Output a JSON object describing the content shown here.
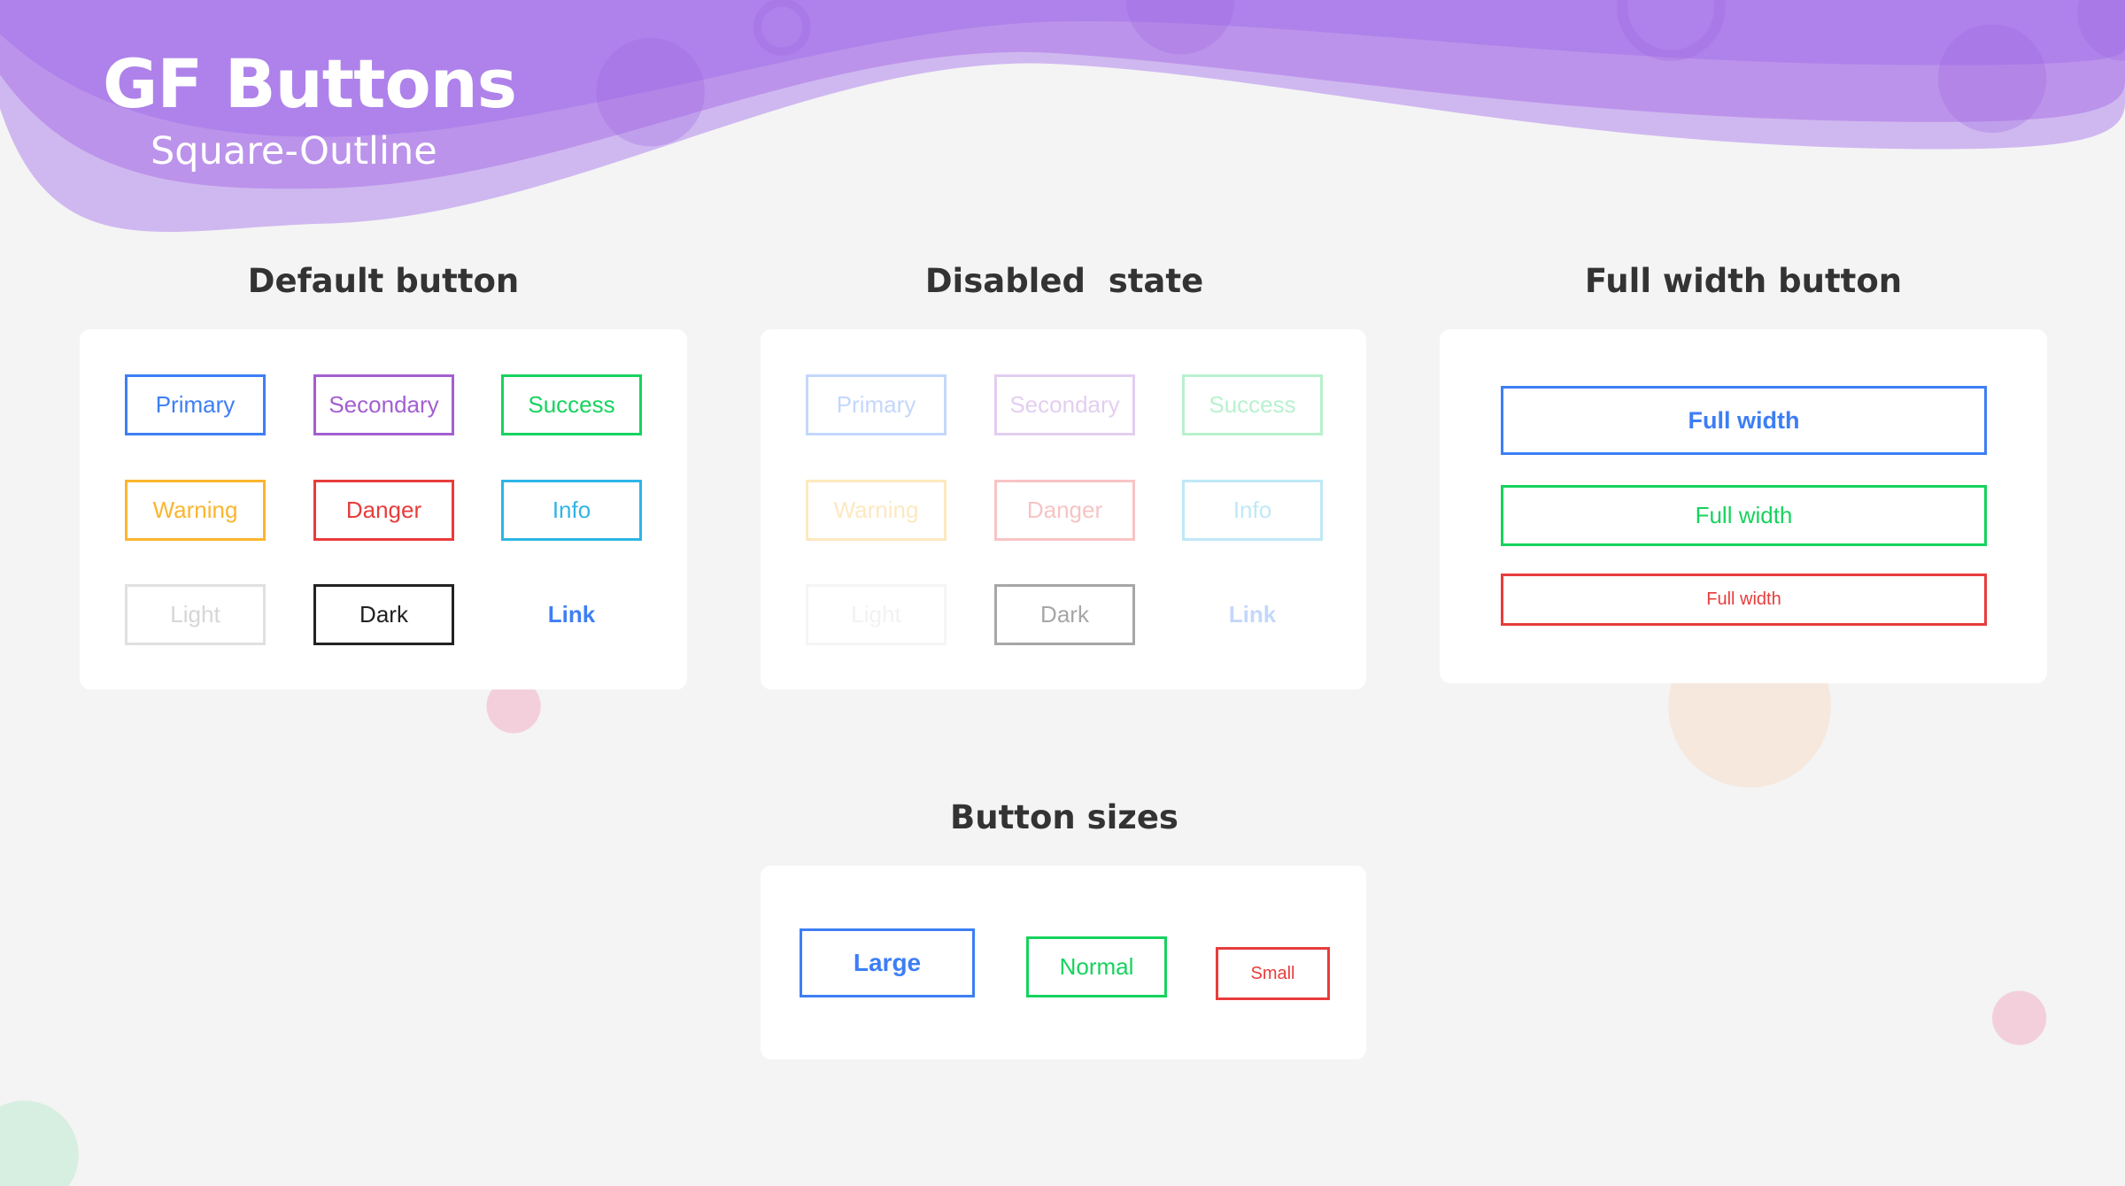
{
  "header": {
    "title": "GF Buttons",
    "subtitle": "Square-Outline"
  },
  "colors": {
    "primary": "#3d7ef5",
    "secondary": "#a35fd0",
    "success": "#16d35e",
    "warning": "#fbb52e",
    "danger": "#e83c3c",
    "info": "#2fb5e6",
    "light": "#e0e0e0",
    "dark": "#222222",
    "header_purple": "#ae82ea"
  },
  "default_section": {
    "heading": "Default button",
    "buttons": [
      "Primary",
      "Secondary",
      "Success",
      "Warning",
      "Danger",
      "Info",
      "Light",
      "Dark",
      "Link"
    ]
  },
  "disabled_section": {
    "heading": "Disabled  state",
    "buttons": [
      "Primary",
      "Secondary",
      "Success",
      "Warning",
      "Danger",
      "Info",
      "Light",
      "Dark",
      "Link"
    ]
  },
  "full_width_section": {
    "heading": "Full width button",
    "buttons": [
      "Full width",
      "Full width",
      "Full width"
    ]
  },
  "sizes_section": {
    "heading": "Button sizes",
    "large": "Large",
    "normal": "Normal",
    "small": "Small"
  }
}
